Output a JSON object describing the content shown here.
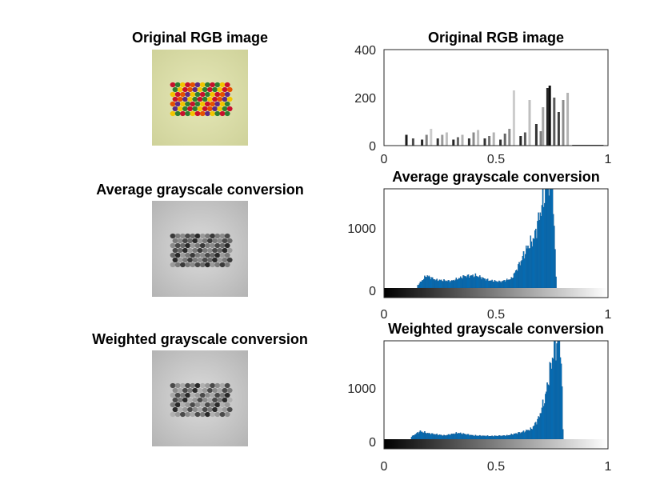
{
  "figure": {
    "image_panels": [
      {
        "title": "Original RGB image"
      },
      {
        "title": "Average grayscale conversion"
      },
      {
        "title": "Weighted grayscale conversion"
      }
    ]
  },
  "chart_data": [
    {
      "type": "bar",
      "title": "Original RGB image",
      "xlim": [
        0,
        1
      ],
      "ylim": [
        0,
        400
      ],
      "xticks": [
        "0",
        "0.5",
        "1"
      ],
      "yticks": [
        "0",
        "200",
        "400"
      ],
      "bar_color": "#000000",
      "peaks": [
        {
          "x": 0.1,
          "y": 45,
          "gray": 0.1
        },
        {
          "x": 0.13,
          "y": 30,
          "gray": 0.3
        },
        {
          "x": 0.17,
          "y": 25,
          "gray": 0.15
        },
        {
          "x": 0.19,
          "y": 45,
          "gray": 0.5
        },
        {
          "x": 0.21,
          "y": 70,
          "gray": 0.8
        },
        {
          "x": 0.24,
          "y": 30,
          "gray": 0.2
        },
        {
          "x": 0.26,
          "y": 45,
          "gray": 0.6
        },
        {
          "x": 0.28,
          "y": 55,
          "gray": 0.75
        },
        {
          "x": 0.31,
          "y": 25,
          "gray": 0.15
        },
        {
          "x": 0.33,
          "y": 35,
          "gray": 0.4
        },
        {
          "x": 0.35,
          "y": 45,
          "gray": 0.7
        },
        {
          "x": 0.38,
          "y": 30,
          "gray": 0.2
        },
        {
          "x": 0.4,
          "y": 55,
          "gray": 0.55
        },
        {
          "x": 0.42,
          "y": 65,
          "gray": 0.75
        },
        {
          "x": 0.45,
          "y": 30,
          "gray": 0.2
        },
        {
          "x": 0.47,
          "y": 40,
          "gray": 0.45
        },
        {
          "x": 0.49,
          "y": 55,
          "gray": 0.7
        },
        {
          "x": 0.52,
          "y": 25,
          "gray": 0.2
        },
        {
          "x": 0.54,
          "y": 50,
          "gray": 0.4
        },
        {
          "x": 0.56,
          "y": 70,
          "gray": 0.55
        },
        {
          "x": 0.58,
          "y": 230,
          "gray": 0.8
        },
        {
          "x": 0.61,
          "y": 40,
          "gray": 0.15
        },
        {
          "x": 0.63,
          "y": 55,
          "gray": 0.35
        },
        {
          "x": 0.65,
          "y": 190,
          "gray": 0.75
        },
        {
          "x": 0.68,
          "y": 90,
          "gray": 0.2
        },
        {
          "x": 0.7,
          "y": 60,
          "gray": 0.5
        },
        {
          "x": 0.71,
          "y": 160,
          "gray": 0.65
        },
        {
          "x": 0.73,
          "y": 240,
          "gray": 0.15
        },
        {
          "x": 0.74,
          "y": 250,
          "gray": 0.05
        },
        {
          "x": 0.76,
          "y": 200,
          "gray": 0.35
        },
        {
          "x": 0.78,
          "y": 140,
          "gray": 0.25
        },
        {
          "x": 0.8,
          "y": 190,
          "gray": 0.55
        },
        {
          "x": 0.82,
          "y": 220,
          "gray": 0.7
        }
      ]
    },
    {
      "type": "bar",
      "title": "Average grayscale conversion",
      "xlim": [
        0,
        1
      ],
      "ylim": [
        0,
        1600
      ],
      "xticks": [
        "0",
        "0.5",
        "1"
      ],
      "yticks": [
        "0",
        "1000"
      ],
      "bar_color": "#0072BD",
      "colorbar": "gray",
      "peaks": [
        {
          "x": 0.15,
          "y": 40
        },
        {
          "x": 0.19,
          "y": 200
        },
        {
          "x": 0.23,
          "y": 130
        },
        {
          "x": 0.3,
          "y": 110
        },
        {
          "x": 0.36,
          "y": 190
        },
        {
          "x": 0.41,
          "y": 200
        },
        {
          "x": 0.47,
          "y": 120
        },
        {
          "x": 0.52,
          "y": 100
        },
        {
          "x": 0.57,
          "y": 150
        },
        {
          "x": 0.6,
          "y": 350
        },
        {
          "x": 0.64,
          "y": 650
        },
        {
          "x": 0.67,
          "y": 800
        },
        {
          "x": 0.69,
          "y": 1100
        },
        {
          "x": 0.71,
          "y": 1400
        },
        {
          "x": 0.73,
          "y": 1700
        },
        {
          "x": 0.75,
          "y": 1800
        },
        {
          "x": 0.77,
          "y": 0
        }
      ]
    },
    {
      "type": "bar",
      "title": "Weighted grayscale conversion",
      "xlim": [
        0,
        1
      ],
      "ylim": [
        0,
        1900
      ],
      "xticks": [
        "0",
        "0.5",
        "1"
      ],
      "yticks": [
        "0",
        "1000"
      ],
      "bar_color": "#0072BD",
      "colorbar": "gray",
      "peaks": [
        {
          "x": 0.12,
          "y": 40
        },
        {
          "x": 0.16,
          "y": 150
        },
        {
          "x": 0.2,
          "y": 110
        },
        {
          "x": 0.27,
          "y": 70
        },
        {
          "x": 0.33,
          "y": 120
        },
        {
          "x": 0.4,
          "y": 70
        },
        {
          "x": 0.48,
          "y": 60
        },
        {
          "x": 0.55,
          "y": 70
        },
        {
          "x": 0.62,
          "y": 140
        },
        {
          "x": 0.66,
          "y": 200
        },
        {
          "x": 0.69,
          "y": 400
        },
        {
          "x": 0.72,
          "y": 800
        },
        {
          "x": 0.74,
          "y": 1300
        },
        {
          "x": 0.76,
          "y": 1750
        },
        {
          "x": 0.78,
          "y": 1950
        },
        {
          "x": 0.79,
          "y": 1700
        },
        {
          "x": 0.8,
          "y": 0
        }
      ]
    }
  ]
}
